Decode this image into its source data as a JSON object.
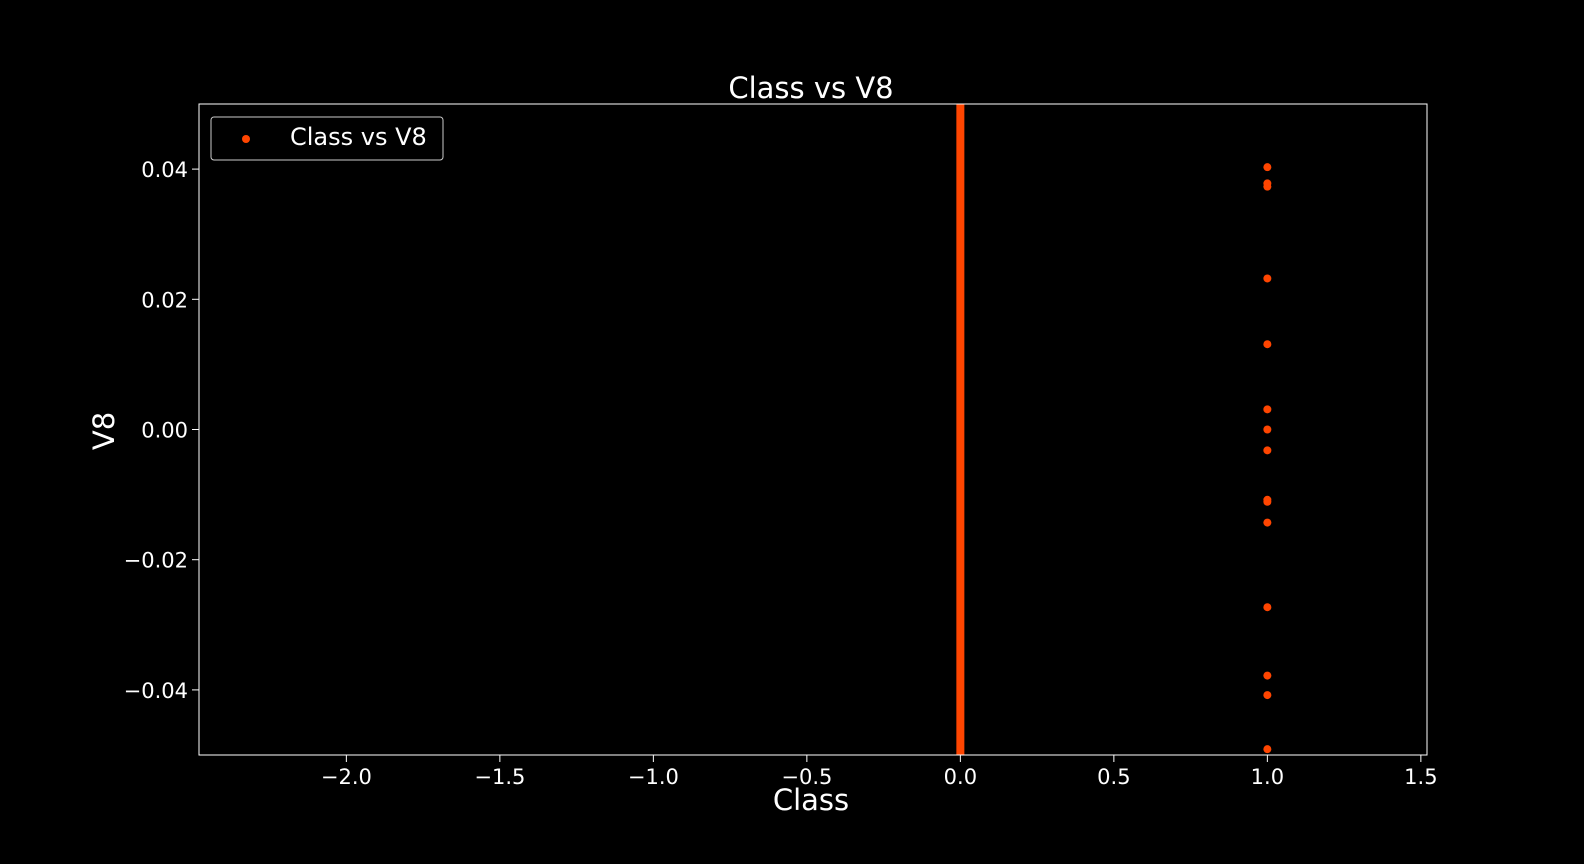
{
  "chart_data": {
    "type": "scatter",
    "title": "Class vs V8",
    "xlabel": "Class",
    "ylabel": "V8",
    "xlim": [
      -2.48,
      1.52
    ],
    "ylim": [
      -0.05,
      0.05
    ],
    "xticks": [
      -2.0,
      -1.5,
      -1.0,
      -0.5,
      0.0,
      0.5,
      1.0,
      1.5
    ],
    "xtick_labels": [
      "−2.0",
      "−1.5",
      "−1.0",
      "−0.5",
      "0.0",
      "0.5",
      "1.0",
      "1.5"
    ],
    "yticks": [
      -0.04,
      -0.02,
      0.0,
      0.02,
      0.04
    ],
    "ytick_labels": [
      "−0.04",
      "−0.02",
      "0.00",
      "0.02",
      "0.04"
    ],
    "grid": false,
    "legend": {
      "position": "top-left",
      "entries": [
        "Class vs V8"
      ]
    },
    "series": [
      {
        "name": "Class vs V8",
        "color": "#ff4500",
        "dense_band": {
          "x": 0,
          "y_from": -0.05,
          "y_to": 0.05
        },
        "x": [
          1,
          1,
          1,
          1,
          1,
          1,
          1,
          1,
          1,
          1,
          1,
          1,
          1,
          1,
          1
        ],
        "y": [
          0.0403,
          0.0378,
          0.0373,
          0.0232,
          0.0131,
          0.0031,
          0.0,
          -0.0032,
          -0.0108,
          -0.0111,
          -0.0143,
          -0.0273,
          -0.0378,
          -0.0408,
          -0.0491
        ]
      }
    ]
  }
}
